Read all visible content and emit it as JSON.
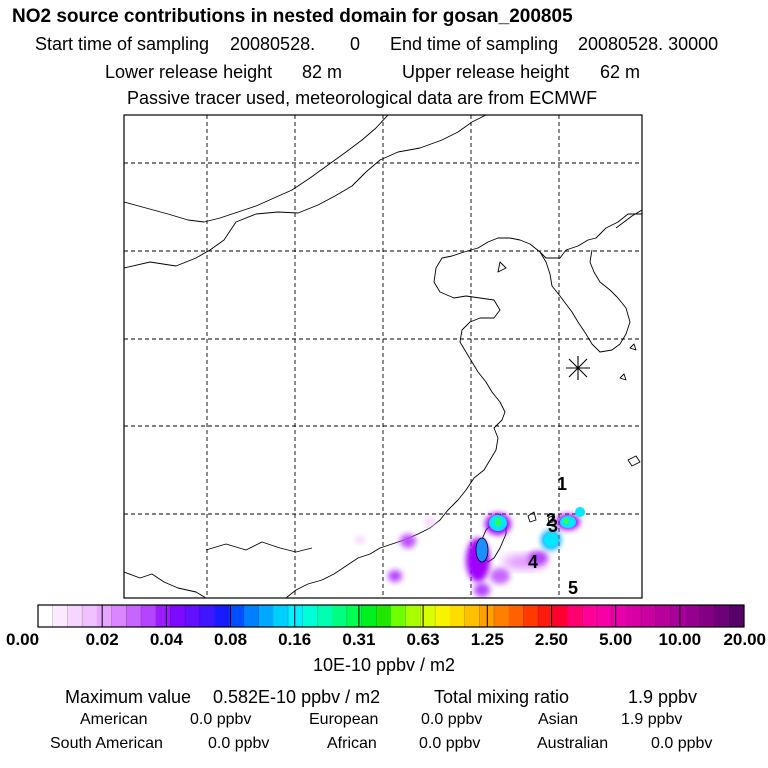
{
  "header": {
    "title": "NO2 source contributions in nested domain for gosan_200805",
    "start_label": "Start time of sampling",
    "start_value": "20080528.",
    "start_hour": "0",
    "end_label": "End time of sampling",
    "end_value": "20080528. 30000",
    "lower_label": "Lower release height",
    "lower_value": "82 m",
    "upper_label": "Upper release height",
    "upper_value": "62 m",
    "note": "Passive tracer used, meteorological data are from ECMWF"
  },
  "map": {
    "region_labels": [
      "1",
      "2",
      "3",
      "4",
      "5"
    ],
    "receptor_marker": "asterisk-icon",
    "plume_colors": [
      "#a000ff",
      "#c050ff",
      "#e090ff",
      "#00e8ff",
      "#1a90ff",
      "#30ff50"
    ]
  },
  "colorbar": {
    "tick_labels": [
      "0.00",
      "0.02",
      "0.04",
      "0.08",
      "0.16",
      "0.31",
      "0.63",
      "1.25",
      "2.50",
      "5.00",
      "10.00",
      "20.00"
    ],
    "segment_colors": [
      "#ffffff",
      "#fbeaff",
      "#f6d6ff",
      "#f0c0ff",
      "#e6a6ff",
      "#d887ff",
      "#c766ff",
      "#b444ff",
      "#9a1cff",
      "#7d0aff",
      "#6010ff",
      "#4015ff",
      "#1a1aff",
      "#0050ff",
      "#0080ff",
      "#00a8ff",
      "#00d0ff",
      "#00f0ff",
      "#00ffd8",
      "#00ffb0",
      "#00ff80",
      "#00ff50",
      "#00f020",
      "#20e600",
      "#70ff00",
      "#a8ff00",
      "#d8ff00",
      "#f8f400",
      "#ffdc00",
      "#ffc000",
      "#ffa000",
      "#ff8000",
      "#ff6000",
      "#ff3a00",
      "#ff1a10",
      "#ff0030",
      "#ff0070",
      "#ff0098",
      "#f800a8",
      "#e800a8",
      "#d800a4",
      "#c800a0",
      "#b8009c",
      "#a80098",
      "#960090",
      "#820084",
      "#6e0078",
      "#58006a"
    ],
    "unit": "10E-10 ppbv / m2"
  },
  "footer": {
    "max_label": "Maximum value",
    "max_value": "0.582E-10 ppbv / m2",
    "total_label": "Total mixing ratio",
    "total_value": "1.9 ppbv",
    "regions": [
      {
        "name": "American",
        "value": "0.0 ppbv"
      },
      {
        "name": "European",
        "value": "0.0 ppbv"
      },
      {
        "name": "Asian",
        "value": "1.9 ppbv"
      },
      {
        "name": "South American",
        "value": "0.0 ppbv"
      },
      {
        "name": "African",
        "value": "0.0 ppbv"
      },
      {
        "name": "Australian",
        "value": "0.0 ppbv"
      }
    ]
  }
}
